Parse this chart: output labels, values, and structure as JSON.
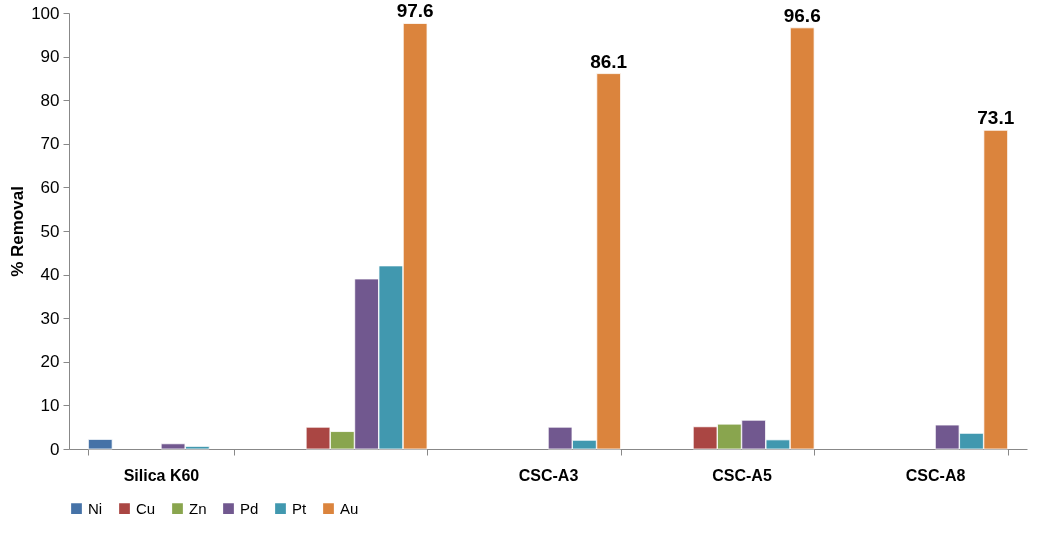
{
  "chart_data": {
    "type": "bar",
    "ylabel": "% Removal",
    "categories": [
      "Silica K60",
      null,
      "CSC-A3",
      "CSC-A5",
      "CSC-A8"
    ],
    "series": [
      {
        "name": "Ni",
        "color": "#4572a7",
        "values": [
          2.2,
          null,
          null,
          null,
          null
        ]
      },
      {
        "name": "Cu",
        "color": "#aa4643",
        "values": [
          null,
          5.0,
          null,
          5.1,
          null
        ]
      },
      {
        "name": "Zn",
        "color": "#89a54e",
        "values": [
          null,
          4.0,
          null,
          5.7,
          null
        ]
      },
      {
        "name": "Pd",
        "color": "#71588f",
        "values": [
          1.2,
          39,
          5.0,
          6.6,
          5.5
        ]
      },
      {
        "name": "Pt",
        "color": "#4198af",
        "values": [
          0.6,
          42,
          2.0,
          2.1,
          3.6
        ]
      },
      {
        "name": "Au",
        "color": "#db843d",
        "values": [
          null,
          97.6,
          86.1,
          96.6,
          73.1
        ],
        "value_labels": [
          null,
          "97.6",
          "86.1",
          "96.6",
          "73.1"
        ]
      }
    ],
    "ylim": [
      0,
      100
    ],
    "yticks": [
      0,
      10,
      20,
      30,
      40,
      50,
      60,
      70,
      80,
      90,
      100
    ],
    "grid": false,
    "legend": "bottom"
  }
}
